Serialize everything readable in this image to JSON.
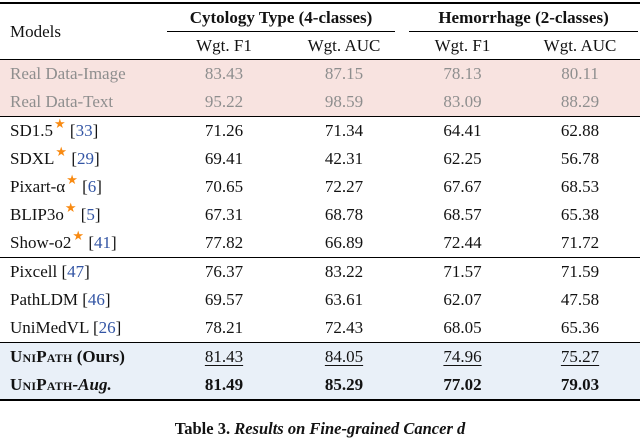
{
  "header": {
    "models_label": "Models",
    "groups": [
      {
        "label": "Cytology Type (4-classes)"
      },
      {
        "label": "Hemorrhage (2-classes)"
      }
    ],
    "subheaders": [
      "Wgt. F1",
      "Wgt. AUC",
      "Wgt. F1",
      "Wgt. AUC"
    ]
  },
  "rows": [
    {
      "section": "real",
      "model": "Real Data-Image",
      "values": [
        "83.43",
        "87.15",
        "78.13",
        "80.11"
      ]
    },
    {
      "section": "real",
      "model": "Real Data-Text",
      "values": [
        "95.22",
        "98.59",
        "83.09",
        "88.29"
      ]
    },
    {
      "section": "star",
      "model": "SD1.5",
      "star": true,
      "cite": "33",
      "values": [
        "71.26",
        "71.34",
        "64.41",
        "62.88"
      ]
    },
    {
      "section": "star",
      "model": "SDXL",
      "star": true,
      "cite": "29",
      "values": [
        "69.41",
        "42.31",
        "62.25",
        "56.78"
      ]
    },
    {
      "section": "star",
      "model": "Pixart-α",
      "star": true,
      "cite": "6",
      "values": [
        "70.65",
        "72.27",
        "67.67",
        "68.53"
      ]
    },
    {
      "section": "star",
      "model": "BLIP3o",
      "star": true,
      "cite": "5",
      "values": [
        "67.31",
        "68.78",
        "68.57",
        "65.38"
      ]
    },
    {
      "section": "star",
      "model": "Show-o2",
      "star": true,
      "cite": "41",
      "values": [
        "77.82",
        "66.89",
        "72.44",
        "71.72"
      ]
    },
    {
      "section": "mid",
      "model": "Pixcell",
      "cite": "47",
      "values": [
        "76.37",
        "83.22",
        "71.57",
        "71.59"
      ]
    },
    {
      "section": "mid",
      "model": "PathLDM",
      "cite": "46",
      "values": [
        "69.57",
        "63.61",
        "62.07",
        "47.58"
      ]
    },
    {
      "section": "mid",
      "model": "UniMedVL",
      "cite": "26",
      "values": [
        "78.21",
        "72.43",
        "68.05",
        "65.36"
      ]
    },
    {
      "section": "ours",
      "model": "UniPath",
      "smallcaps": true,
      "suffix": " (Ours)",
      "value_style": "underline",
      "values": [
        "81.43",
        "84.05",
        "74.96",
        "75.27"
      ]
    },
    {
      "section": "ours",
      "model": "UniPath",
      "smallcaps": true,
      "suffix": "-Aug.",
      "suffix_italic": true,
      "value_style": "bold",
      "values": [
        "81.49",
        "85.29",
        "77.02",
        "79.03"
      ]
    }
  ],
  "icons": {
    "star_glyph": "★"
  },
  "citation_brackets": {
    "open": "[",
    "close": "]"
  },
  "caption": {
    "label": "Table 3.",
    "rest": " Results on Fine-grained Cancer d"
  },
  "colors": {
    "pink_row_bg": "#f8e3e0",
    "pink_row_text": "#8e8e8e",
    "ours_row_bg": "#e9f0f8",
    "star_orange": "#f88a12",
    "citation_blue": "#3355a4",
    "text_ink": "#121212"
  }
}
